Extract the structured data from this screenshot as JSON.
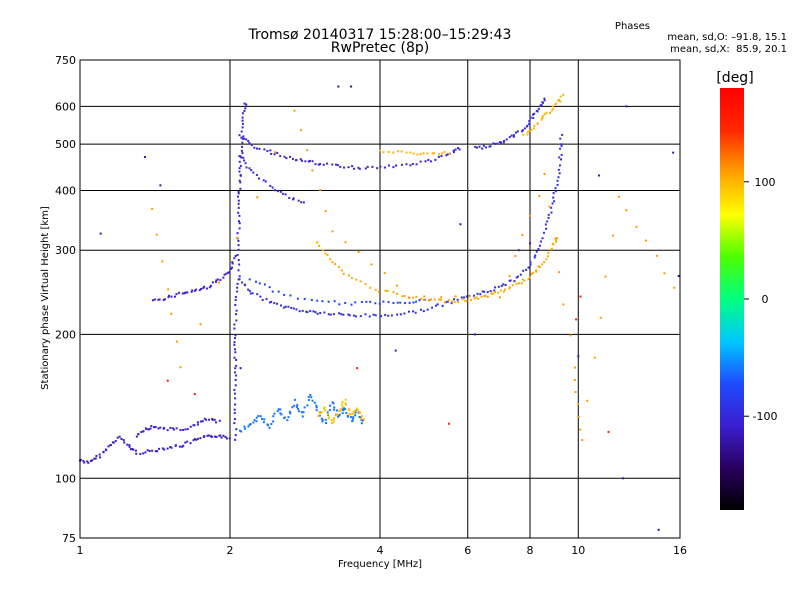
{
  "header": {
    "title_line1": "Tromsø 20140317 15:28:00–15:29:43",
    "title_line2": "RwPretec (8p)",
    "stats_title": "Phases",
    "stats_o": "mean, sd,O: –91.8, 15.1",
    "stats_x": "mean, sd,X:  85.9, 20.1"
  },
  "chart_data": {
    "type": "scatter",
    "xlabel": "Frequency [MHz]",
    "ylabel": "Stationary phase Virtual Height [km]",
    "x_scale": "log",
    "y_scale": "log",
    "xlim": [
      1,
      16
    ],
    "ylim": [
      75,
      750
    ],
    "x_ticks": [
      1,
      2,
      4,
      6,
      8,
      10,
      16
    ],
    "y_ticks": [
      75,
      100,
      200,
      300,
      400,
      500,
      600,
      750
    ],
    "x_gridlines": [
      2,
      4,
      6,
      8,
      10
    ],
    "y_gridlines": [
      100,
      200,
      300,
      400,
      500,
      600
    ],
    "colorbar": {
      "label": "[deg]",
      "range": [
        -180,
        180
      ],
      "ticks": [
        100,
        0,
        -100
      ],
      "colormap": [
        "#000000",
        "#2a0060",
        "#3b1fd0",
        "#1e4cff",
        "#00c8ff",
        "#00ff80",
        "#4cff00",
        "#ffff00",
        "#ffa000",
        "#ff2800",
        "#ff0000"
      ]
    },
    "series": [
      {
        "points": [
          [
            1.0,
            109
          ],
          [
            1.05,
            108
          ],
          [
            1.1,
            112
          ],
          [
            1.15,
            117
          ],
          [
            1.2,
            122
          ],
          [
            1.25,
            117
          ],
          [
            1.3,
            113
          ],
          [
            1.4,
            114
          ],
          [
            1.5,
            116
          ],
          [
            1.6,
            117
          ],
          [
            1.7,
            120
          ],
          [
            1.8,
            122
          ],
          [
            1.9,
            123
          ],
          [
            2.0,
            121
          ]
        ],
        "phase": -110
      },
      {
        "points": [
          [
            1.3,
            123
          ],
          [
            1.35,
            127
          ],
          [
            1.4,
            128
          ],
          [
            1.5,
            127
          ],
          [
            1.6,
            126
          ],
          [
            1.7,
            129
          ],
          [
            1.8,
            133
          ],
          [
            1.9,
            131
          ]
        ],
        "phase": -105
      },
      {
        "points": [
          [
            1.4,
            235
          ],
          [
            1.5,
            239
          ],
          [
            1.6,
            244
          ],
          [
            1.7,
            247
          ],
          [
            1.8,
            251
          ],
          [
            1.9,
            260
          ],
          [
            2.0,
            270
          ],
          [
            2.05,
            290
          ]
        ],
        "phase": -108
      },
      {
        "points": [
          [
            2.1,
            260
          ],
          [
            2.2,
            245
          ],
          [
            2.4,
            234
          ],
          [
            2.6,
            228
          ],
          [
            2.8,
            224
          ],
          [
            3.0,
            222
          ],
          [
            3.3,
            220
          ],
          [
            3.6,
            219
          ],
          [
            4.0,
            219
          ],
          [
            4.5,
            221
          ],
          [
            5.0,
            226
          ],
          [
            5.5,
            233
          ],
          [
            6.0,
            240
          ],
          [
            6.5,
            245
          ],
          [
            7.0,
            252
          ],
          [
            7.5,
            262
          ],
          [
            8.0,
            280
          ],
          [
            8.4,
            305
          ],
          [
            8.7,
            345
          ],
          [
            8.9,
            380
          ],
          [
            9.1,
            420
          ],
          [
            9.2,
            470
          ],
          [
            9.25,
            520
          ]
        ],
        "phase": -95
      },
      {
        "points": [
          [
            2.2,
            262
          ],
          [
            2.5,
            244
          ],
          [
            3.0,
            234
          ],
          [
            3.5,
            232
          ],
          [
            4.0,
            233
          ],
          [
            4.5,
            234
          ],
          [
            5.0,
            236
          ]
        ],
        "phase": -80
      },
      {
        "points": [
          [
            3.0,
            310
          ],
          [
            3.2,
            283
          ],
          [
            3.5,
            262
          ],
          [
            4.0,
            247
          ],
          [
            4.5,
            240
          ],
          [
            5.0,
            236
          ],
          [
            5.5,
            235
          ],
          [
            6.0,
            236
          ],
          [
            6.5,
            240
          ],
          [
            7.0,
            246
          ],
          [
            7.5,
            254
          ],
          [
            8.0,
            264
          ],
          [
            8.4,
            278
          ],
          [
            8.8,
            300
          ],
          [
            9.1,
            320
          ]
        ],
        "phase": 105
      },
      {
        "points": [
          [
            2.1,
            520
          ],
          [
            2.2,
            497
          ],
          [
            2.4,
            482
          ],
          [
            2.6,
            470
          ],
          [
            2.8,
            462
          ],
          [
            3.0,
            455
          ],
          [
            3.3,
            450
          ],
          [
            3.6,
            446
          ],
          [
            4.0,
            447
          ],
          [
            4.5,
            452
          ],
          [
            5.0,
            460
          ],
          [
            5.5,
            475
          ],
          [
            5.8,
            490
          ]
        ],
        "phase": -105
      },
      {
        "points": [
          [
            4.0,
            485
          ],
          [
            4.5,
            480
          ],
          [
            5.0,
            475
          ],
          [
            5.5,
            480
          ]
        ],
        "phase": 100
      },
      {
        "points": [
          [
            6.2,
            490
          ],
          [
            6.6,
            495
          ],
          [
            7.0,
            505
          ],
          [
            7.4,
            520
          ],
          [
            7.8,
            540
          ],
          [
            8.1,
            570
          ],
          [
            8.4,
            600
          ],
          [
            8.6,
            620
          ]
        ],
        "phase": -100
      },
      {
        "points": [
          [
            7.8,
            520
          ],
          [
            8.2,
            545
          ],
          [
            8.6,
            575
          ],
          [
            9.0,
            605
          ],
          [
            9.3,
            630
          ]
        ],
        "phase": 100
      },
      {
        "points": [
          [
            2.1,
            470
          ],
          [
            2.2,
            440
          ],
          [
            2.4,
            410
          ],
          [
            2.6,
            390
          ],
          [
            2.8,
            375
          ]
        ],
        "phase": -100
      },
      {
        "points": [
          [
            2.05,
            120
          ],
          [
            2.05,
            140
          ],
          [
            2.05,
            160
          ],
          [
            2.05,
            180
          ],
          [
            2.05,
            200
          ],
          [
            2.05,
            230
          ],
          [
            2.08,
            260
          ],
          [
            2.08,
            300
          ],
          [
            2.08,
            340
          ],
          [
            2.08,
            380
          ],
          [
            2.1,
            420
          ],
          [
            2.1,
            460
          ],
          [
            2.12,
            500
          ],
          [
            2.12,
            560
          ],
          [
            2.15,
            610
          ]
        ],
        "phase": -105
      },
      {
        "points": [
          [
            2.1,
            125
          ],
          [
            2.2,
            130
          ],
          [
            2.3,
            135
          ],
          [
            2.4,
            128
          ],
          [
            2.5,
            140
          ],
          [
            2.6,
            132
          ],
          [
            2.7,
            145
          ],
          [
            2.8,
            135
          ],
          [
            2.9,
            150
          ],
          [
            3.0,
            138
          ],
          [
            3.1,
            130
          ],
          [
            3.2,
            145
          ],
          [
            3.3,
            135
          ],
          [
            3.4,
            140
          ],
          [
            3.5,
            132
          ],
          [
            3.6,
            138
          ],
          [
            3.7,
            130
          ]
        ],
        "phase": -60
      },
      {
        "points": [
          [
            3.0,
            135
          ],
          [
            3.1,
            140
          ],
          [
            3.2,
            130
          ],
          [
            3.3,
            138
          ],
          [
            3.4,
            145
          ],
          [
            3.5,
            135
          ],
          [
            3.6,
            140
          ],
          [
            3.7,
            133
          ]
        ],
        "phase": 95
      },
      {
        "points": [
          [
            1.1,
            325
          ],
          [
            1.35,
            470
          ],
          [
            1.45,
            410
          ],
          [
            2.1,
            170
          ],
          [
            3.3,
            660
          ],
          [
            3.5,
            660
          ],
          [
            4.3,
            185
          ],
          [
            5.8,
            340
          ],
          [
            6.2,
            200
          ],
          [
            7.6,
            300
          ],
          [
            8.0,
            310
          ],
          [
            10.0,
            180
          ],
          [
            11.0,
            430
          ],
          [
            12.3,
            100
          ],
          [
            12.5,
            600
          ],
          [
            14.5,
            78
          ],
          [
            15.5,
            480
          ],
          [
            15.9,
            265
          ]
        ],
        "phase": -120
      },
      {
        "points": [
          [
            1.4,
            365
          ],
          [
            1.6,
            170
          ],
          [
            2.7,
            590
          ],
          [
            3.2,
            330
          ],
          [
            4.6,
            240
          ],
          [
            7.0,
            240
          ],
          [
            8.6,
            430
          ],
          [
            9.8,
            170
          ],
          [
            10.2,
            120
          ],
          [
            12.0,
            390
          ],
          [
            15.6,
            250
          ]
        ],
        "phase": 110
      },
      {
        "points": [
          [
            1.5,
            160
          ],
          [
            1.7,
            150
          ],
          [
            3.6,
            170
          ],
          [
            5.5,
            130
          ],
          [
            9.9,
            215
          ],
          [
            10.1,
            240
          ],
          [
            11.5,
            125
          ]
        ],
        "phase": 160
      }
    ]
  }
}
